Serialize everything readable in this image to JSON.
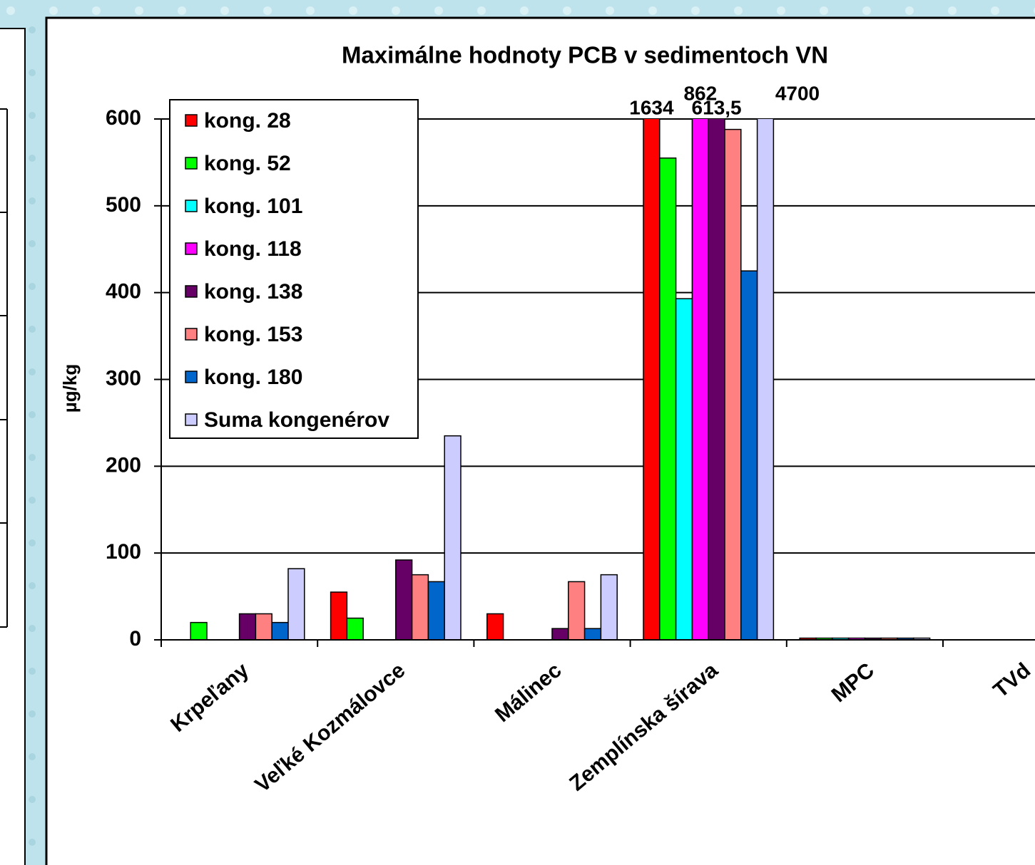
{
  "chart_data": {
    "type": "bar",
    "title": "Maximálne hodnoty PCB v sedimentoch VN",
    "y_label": "µg/kg",
    "categories": [
      "Krpeľany",
      "Veľké Kozmálovce",
      "Málinec",
      "Zemplínska šírava",
      "MPC",
      "TVd"
    ],
    "series": [
      {
        "name": "kong. 28",
        "color": "#ff0000",
        "values": [
          null,
          55,
          30,
          1634,
          2,
          null
        ],
        "value_labels": [
          null,
          null,
          null,
          "1634",
          null,
          null
        ]
      },
      {
        "name": "kong. 52",
        "color": "#00ff00",
        "values": [
          20,
          25,
          null,
          555,
          2,
          null
        ]
      },
      {
        "name": "kong. 101",
        "color": "#00ffff",
        "values": [
          null,
          null,
          null,
          393,
          2,
          null
        ]
      },
      {
        "name": "kong. 118",
        "color": "#ff00ff",
        "values": [
          null,
          null,
          null,
          862,
          2,
          null
        ],
        "value_labels": [
          null,
          null,
          null,
          "862",
          null,
          null
        ]
      },
      {
        "name": "kong. 138",
        "color": "#660066",
        "values": [
          30,
          92,
          13,
          613.5,
          2,
          null
        ],
        "value_labels": [
          null,
          null,
          null,
          "613,5",
          null,
          null
        ]
      },
      {
        "name": "kong. 153",
        "color": "#ff8080",
        "values": [
          30,
          75,
          67,
          588,
          2,
          null
        ]
      },
      {
        "name": "kong. 180",
        "color": "#0066cc",
        "values": [
          20,
          67,
          13,
          425,
          2,
          null
        ]
      },
      {
        "name": "Suma kongenérov",
        "color": "#ccccff",
        "values": [
          82,
          235,
          75,
          4700,
          2,
          null
        ],
        "value_labels": [
          null,
          null,
          null,
          "4700",
          null,
          null
        ]
      }
    ],
    "ylim": [
      0,
      600
    ],
    "yticks": [
      0,
      100,
      200,
      300,
      400,
      500,
      600
    ],
    "grid": true,
    "legend": "top-left"
  }
}
